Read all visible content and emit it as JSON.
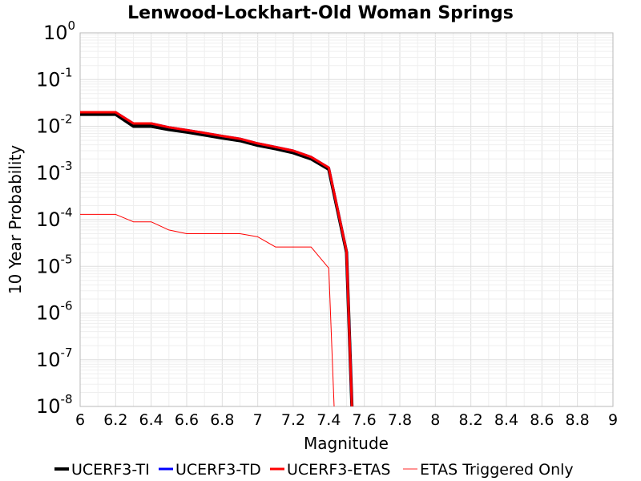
{
  "chart_data": {
    "type": "line",
    "title": "Lenwood-Lockhart-Old Woman Springs",
    "xlabel": "Magnitude",
    "ylabel": "10 Year Probability",
    "xlim": [
      6,
      9
    ],
    "ylim": [
      1e-08,
      1
    ],
    "yscale": "log",
    "grid": true,
    "legend_position": "bottom",
    "x_ticks": [
      "6",
      "6.2",
      "6.4",
      "6.6",
      "6.8",
      "7",
      "7.2",
      "7.4",
      "7.6",
      "7.8",
      "8",
      "8.2",
      "8.4",
      "8.6",
      "8.8",
      "9"
    ],
    "y_ticks": [
      {
        "base": "10",
        "exp": "0",
        "value": 1
      },
      {
        "base": "10",
        "exp": "-1",
        "value": 0.1
      },
      {
        "base": "10",
        "exp": "-2",
        "value": 0.01
      },
      {
        "base": "10",
        "exp": "-3",
        "value": 0.001
      },
      {
        "base": "10",
        "exp": "-4",
        "value": 0.0001
      },
      {
        "base": "10",
        "exp": "-5",
        "value": 1e-05
      },
      {
        "base": "10",
        "exp": "-6",
        "value": 1e-06
      },
      {
        "base": "10",
        "exp": "-7",
        "value": 1e-07
      },
      {
        "base": "10",
        "exp": "-8",
        "value": 1e-08
      }
    ],
    "series": [
      {
        "name": "UCERF3-TI",
        "color": "#000000",
        "x": [
          6.0,
          6.1,
          6.2,
          6.3,
          6.4,
          6.5,
          6.6,
          6.7,
          6.8,
          6.9,
          7.0,
          7.1,
          7.2,
          7.3,
          7.4,
          7.5,
          7.53
        ],
        "y": [
          0.018,
          0.018,
          0.018,
          0.01,
          0.01,
          0.0085,
          0.0075,
          0.0065,
          0.0056,
          0.0049,
          0.0039,
          0.0033,
          0.0027,
          0.002,
          0.0012,
          2e-05,
          1e-08
        ]
      },
      {
        "name": "UCERF3-TD",
        "color": "#0000ff",
        "x": [
          6.0,
          6.1,
          6.2,
          6.3,
          6.4,
          6.5,
          6.6,
          6.7,
          6.8,
          6.9,
          7.0,
          7.1,
          7.2,
          7.3,
          7.4,
          7.5,
          7.53
        ],
        "y": [
          0.02,
          0.02,
          0.02,
          0.0115,
          0.0115,
          0.0095,
          0.0083,
          0.0072,
          0.0062,
          0.0054,
          0.0043,
          0.0036,
          0.003,
          0.0022,
          0.0013,
          2.1e-05,
          1e-08
        ]
      },
      {
        "name": "UCERF3-ETAS",
        "color": "#ff0000",
        "x": [
          6.0,
          6.1,
          6.2,
          6.3,
          6.4,
          6.5,
          6.6,
          6.7,
          6.8,
          6.9,
          7.0,
          7.1,
          7.2,
          7.3,
          7.4,
          7.5,
          7.53
        ],
        "y": [
          0.02,
          0.02,
          0.02,
          0.0115,
          0.0115,
          0.0095,
          0.0083,
          0.0072,
          0.0062,
          0.0054,
          0.0043,
          0.0036,
          0.003,
          0.0022,
          0.0013,
          2.1e-05,
          1e-08
        ]
      },
      {
        "name": "ETAS Triggered Only",
        "color": "#ff0000",
        "x": [
          6.0,
          6.1,
          6.2,
          6.3,
          6.4,
          6.5,
          6.6,
          6.7,
          6.8,
          6.9,
          7.0,
          7.1,
          7.2,
          7.3,
          7.4,
          7.43
        ],
        "y": [
          0.00013,
          0.00013,
          0.00013,
          9e-05,
          9e-05,
          6e-05,
          5e-05,
          5e-05,
          5e-05,
          5e-05,
          4.3e-05,
          2.6e-05,
          2.6e-05,
          2.6e-05,
          9.2e-06,
          1e-08
        ]
      }
    ]
  }
}
